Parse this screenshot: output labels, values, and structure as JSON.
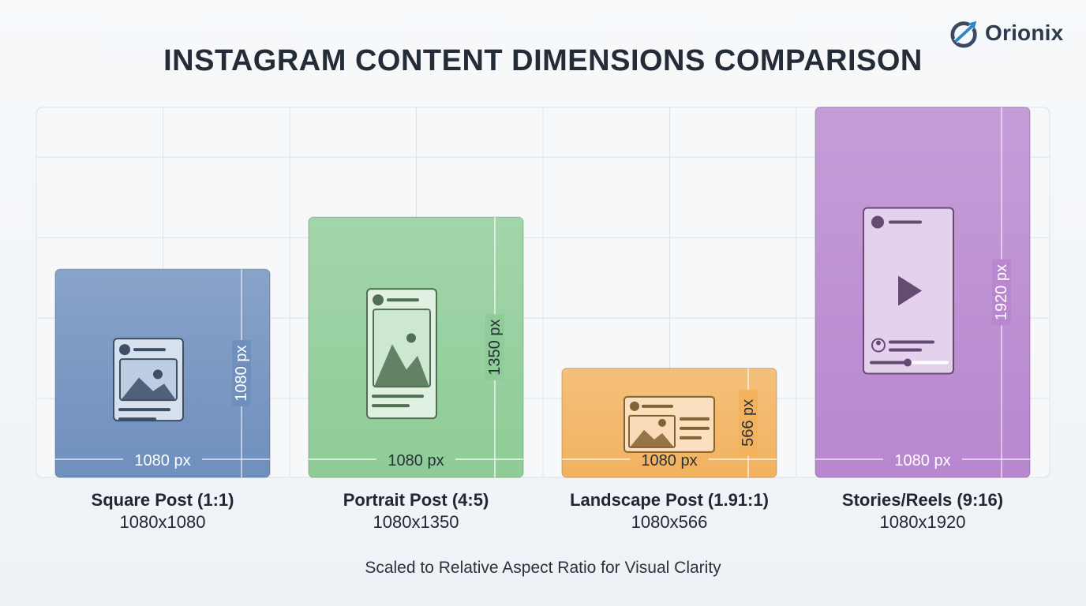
{
  "brand": {
    "name": "Orionix"
  },
  "title": "INSTAGRAM CONTENT DIMENSIONS COMPARISON",
  "footnote": "Scaled to Relative Aspect Ratio for Visual Clarity",
  "chart_data": {
    "type": "bar",
    "title": "INSTAGRAM CONTENT DIMENSIONS COMPARISON",
    "categories": [
      "Square Post (1:1)",
      "Portrait Post (4:5)",
      "Landscape Post (1.91:1)",
      "Stories/Reels (9:16)"
    ],
    "dimension_labels": [
      "1080x1080",
      "1080x1350",
      "1080x566",
      "1080x1920"
    ],
    "widths_px": [
      1080,
      1080,
      1080,
      1080
    ],
    "values": [
      1080,
      1350,
      566,
      1920
    ],
    "width_labels": [
      "1080 px",
      "1080 px",
      "1080 px",
      "1080 px"
    ],
    "height_labels": [
      "1080 px",
      "1350 px",
      "566 px",
      "1920 px"
    ],
    "colors": [
      "#6f8fbd",
      "#8fcc97",
      "#f2b25e",
      "#b887cf"
    ],
    "icons": [
      "image-post-icon",
      "portrait-post-icon",
      "landscape-post-icon",
      "story-player-icon"
    ],
    "ylim": [
      0,
      1920
    ],
    "grid": true,
    "legend": "none"
  }
}
